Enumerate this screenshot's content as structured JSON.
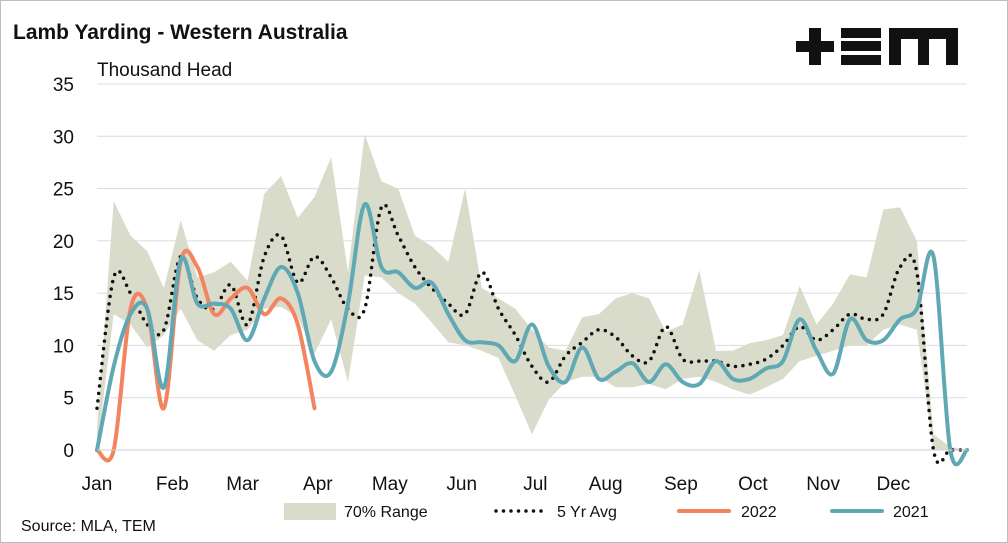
{
  "chart_data": {
    "type": "line",
    "title": "Lamb Yarding - Western Australia",
    "ylabel": "Thousand Head",
    "source": "Source: MLA, TEM",
    "brand": "+EM",
    "ylim": [
      0,
      35
    ],
    "yticks": [
      0,
      5,
      10,
      15,
      20,
      25,
      30,
      35
    ],
    "xlim": [
      1,
      53
    ],
    "month_labels": [
      "Jan",
      "Feb",
      "Mar",
      "Apr",
      "May",
      "Jun",
      "Jul",
      "Aug",
      "Sep",
      "Oct",
      "Nov",
      "Dec"
    ],
    "month_weeks": [
      1,
      5.5,
      9.7,
      14.2,
      18.5,
      22.8,
      27.2,
      31.4,
      35.9,
      40.2,
      44.4,
      48.6
    ],
    "colors": {
      "range": "#d9dccb",
      "avg": "#111111",
      "y2022": "#f4845f",
      "y2021": "#5fa8b4",
      "grid": "#dcdcdc"
    },
    "range_70": {
      "name": "70% Range",
      "x": [
        1,
        2,
        3,
        4,
        5,
        6,
        7,
        8,
        9,
        10,
        11,
        12,
        13,
        14,
        15,
        16,
        17,
        18,
        19,
        20,
        21,
        22,
        23,
        24,
        25,
        26,
        27,
        28,
        29,
        30,
        31,
        32,
        33,
        34,
        35,
        36,
        37,
        38,
        39,
        40,
        41,
        42,
        43,
        44,
        45,
        46,
        47,
        48,
        49,
        50,
        51,
        52,
        53
      ],
      "upper": [
        2,
        23.8,
        20.5,
        19,
        15.5,
        22,
        16.5,
        17,
        18,
        16.2,
        24.5,
        26.2,
        22.2,
        24.2,
        28,
        17,
        30.2,
        25.7,
        25,
        20.5,
        19.5,
        18,
        25,
        15.5,
        14.5,
        13.5,
        11.5,
        9.8,
        9.5,
        12.7,
        13,
        14.5,
        15,
        14.5,
        11.3,
        12,
        17.2,
        9.5,
        9.5,
        10.2,
        10.5,
        11,
        15.7,
        12,
        14,
        16.8,
        16.5,
        23,
        23.2,
        20,
        1.5,
        0.3,
        0
      ],
      "lower": [
        0,
        13,
        12,
        9.8,
        11,
        13.5,
        10.5,
        9.5,
        11,
        11.5,
        13.5,
        13.7,
        12.7,
        9.2,
        12.5,
        6.5,
        16.7,
        16.5,
        15,
        14,
        12.2,
        10.3,
        10,
        9.5,
        8.8,
        5.2,
        1.5,
        4.8,
        6.5,
        7,
        7,
        6,
        6,
        6.3,
        5.8,
        6.8,
        7,
        6.5,
        5.8,
        5.3,
        6,
        6.8,
        8.5,
        9,
        9.5,
        10,
        10,
        11.5,
        12,
        11.5,
        0,
        0,
        0
      ]
    },
    "series": [
      {
        "name": "5 Yr Avg",
        "style": "dotted",
        "x": [
          1,
          2,
          3,
          4,
          5,
          6,
          7,
          8,
          9,
          10,
          11,
          12,
          13,
          14,
          15,
          16,
          17,
          18,
          19,
          20,
          21,
          22,
          23,
          24,
          25,
          26,
          27,
          28,
          29,
          30,
          31,
          32,
          33,
          34,
          35,
          36,
          37,
          38,
          39,
          40,
          41,
          42,
          43,
          44,
          45,
          46,
          47,
          48,
          49,
          50,
          51,
          52,
          53
        ],
        "values": [
          4,
          16.5,
          15,
          12,
          11.5,
          18.5,
          14.5,
          13.5,
          15.8,
          12,
          18.5,
          20.5,
          16,
          18.5,
          16.5,
          13.5,
          13.5,
          23.2,
          20.5,
          17.5,
          15.5,
          14,
          13,
          17,
          13.5,
          11,
          8,
          6.5,
          9,
          10.3,
          11.5,
          10.8,
          9,
          8.5,
          11.8,
          8.7,
          8.5,
          8.5,
          8,
          8.2,
          8.7,
          10,
          11.8,
          10.5,
          11.5,
          13,
          12.5,
          13,
          17.5,
          17,
          0,
          0,
          0
        ]
      },
      {
        "name": "2022",
        "style": "solid",
        "x": [
          1,
          2,
          3,
          4,
          5,
          6,
          7,
          8,
          9,
          10,
          11,
          12,
          13,
          14
        ],
        "values": [
          0,
          0,
          13.5,
          13.5,
          4,
          18,
          17.5,
          13,
          14.5,
          15.5,
          13,
          14.5,
          12,
          4
        ]
      },
      {
        "name": "2021",
        "style": "solid",
        "x": [
          1,
          2,
          3,
          4,
          5,
          6,
          7,
          8,
          9,
          10,
          11,
          12,
          13,
          14,
          15,
          16,
          17,
          18,
          19,
          20,
          21,
          22,
          23,
          24,
          25,
          26,
          27,
          28,
          29,
          30,
          31,
          32,
          33,
          34,
          35,
          36,
          37,
          38,
          39,
          40,
          41,
          42,
          43,
          44,
          45,
          46,
          47,
          48,
          49,
          50,
          51,
          52,
          53
        ],
        "values": [
          0,
          8,
          13,
          13.5,
          6,
          18.2,
          14,
          14,
          13.5,
          10.5,
          14.5,
          17.5,
          15,
          8.5,
          7.5,
          14,
          23.5,
          17.5,
          17,
          15.5,
          16,
          13,
          10.5,
          10.3,
          10,
          8.5,
          12,
          8,
          6.5,
          9.8,
          6.8,
          7.5,
          8.3,
          6.5,
          8.2,
          6.5,
          6.3,
          8.5,
          6.8,
          6.8,
          7.8,
          8.5,
          12.5,
          9.5,
          7.3,
          12.5,
          10.5,
          10.5,
          12.5,
          13.5,
          18.5,
          0,
          0
        ]
      }
    ],
    "legend": [
      "70% Range",
      "5 Yr Avg",
      "2022",
      "2021"
    ]
  }
}
